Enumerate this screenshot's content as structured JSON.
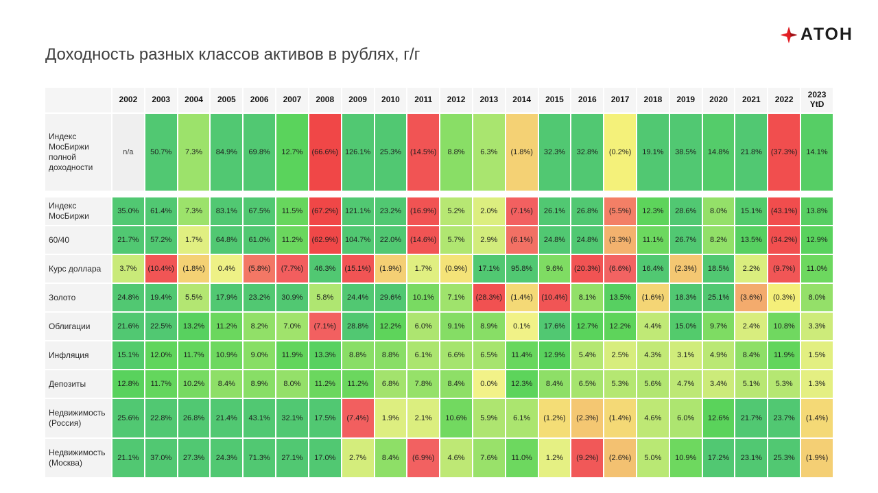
{
  "header": {
    "title": "Доходность разных классов активов в рублях, г/г",
    "brand": "АТОН",
    "brand_color": "#e31e24"
  },
  "chart_data": {
    "type": "heatmap",
    "title": "Доходность разных классов активов в рублях, г/г",
    "value_format": "percent, negative values shown in parentheses, 'n/a' = no data",
    "color_scale": {
      "strong_positive": "#4cb96e",
      "near_zero": "#f7e987",
      "strong_negative": "#ef5b55",
      "na_cell": "#efefef"
    },
    "columns": [
      "2002",
      "2003",
      "2004",
      "2005",
      "2006",
      "2007",
      "2008",
      "2009",
      "2010",
      "2011",
      "2012",
      "2013",
      "2014",
      "2015",
      "2016",
      "2017",
      "2018",
      "2019",
      "2020",
      "2021",
      "2022",
      "2023 YtD"
    ],
    "rows": [
      {
        "label": "Индекс МосБиржи полной доходности",
        "values": [
          "n/a",
          "50.7%",
          "7.3%",
          "84.9%",
          "69.8%",
          "12.7%",
          "(66.6%)",
          "126.1%",
          "25.3%",
          "(14.5%)",
          "8.8%",
          "6.3%",
          "(1.8%)",
          "32.3%",
          "32.8%",
          "(0.2%)",
          "19.1%",
          "38.5%",
          "14.8%",
          "21.8%",
          "(37.3%)",
          "14.1%"
        ]
      },
      {
        "label": "Индекс МосБиржи",
        "values": [
          "35.0%",
          "61.4%",
          "7.3%",
          "83.1%",
          "67.5%",
          "11.5%",
          "(67.2%)",
          "121.1%",
          "23.2%",
          "(16.9%)",
          "5.2%",
          "2.0%",
          "(7.1%)",
          "26.1%",
          "26.8%",
          "(5.5%)",
          "12.3%",
          "28.6%",
          "8.0%",
          "15.1%",
          "(43.1%)",
          "13.8%"
        ]
      },
      {
        "label": "60/40",
        "values": [
          "21.7%",
          "57.2%",
          "1.7%",
          "64.8%",
          "61.0%",
          "11.2%",
          "(62.9%)",
          "104.7%",
          "22.0%",
          "(14.6%)",
          "5.7%",
          "2.9%",
          "(6.1%)",
          "24.8%",
          "24.8%",
          "(3.3%)",
          "11.1%",
          "26.7%",
          "8.2%",
          "13.5%",
          "(34.2%)",
          "12.9%"
        ]
      },
      {
        "label": "Курс доллара",
        "values": [
          "3.7%",
          "(10.4%)",
          "(1.8%)",
          "0.4%",
          "(5.8%)",
          "(7.7%)",
          "46.3%",
          "(15.1%)",
          "(1.9%)",
          "1.7%",
          "(0.9%)",
          "17.1%",
          "95.8%",
          "9.6%",
          "(20.3%)",
          "(6.6%)",
          "16.4%",
          "(2.3%)",
          "18.5%",
          "2.2%",
          "(9.7%)",
          "11.0%"
        ]
      },
      {
        "label": "Золото",
        "values": [
          "24.8%",
          "19.4%",
          "5.5%",
          "17.9%",
          "23.2%",
          "30.9%",
          "5.8%",
          "24.4%",
          "29.6%",
          "10.1%",
          "7.1%",
          "(28.3%)",
          "(1.4%)",
          "(10.4%)",
          "8.1%",
          "13.5%",
          "(1.6%)",
          "18.3%",
          "25.1%",
          "(3.6%)",
          "(0.3%)",
          "8.0%"
        ]
      },
      {
        "label": "Облигации",
        "values": [
          "21.6%",
          "22.5%",
          "13.2%",
          "11.2%",
          "8.2%",
          "7.0%",
          "(7.1%)",
          "28.8%",
          "12.2%",
          "6.0%",
          "9.1%",
          "8.9%",
          "0.1%",
          "17.6%",
          "12.7%",
          "12.2%",
          "4.4%",
          "15.0%",
          "9.7%",
          "2.4%",
          "10.8%",
          "3.3%"
        ]
      },
      {
        "label": "Инфляция",
        "values": [
          "15.1%",
          "12.0%",
          "11.7%",
          "10.9%",
          "9.0%",
          "11.9%",
          "13.3%",
          "8.8%",
          "8.8%",
          "6.1%",
          "6.6%",
          "6.5%",
          "11.4%",
          "12.9%",
          "5.4%",
          "2.5%",
          "4.3%",
          "3.1%",
          "4.9%",
          "8.4%",
          "11.9%",
          "1.5%"
        ]
      },
      {
        "label": "Депозиты",
        "values": [
          "12.8%",
          "11.7%",
          "10.2%",
          "8.4%",
          "8.9%",
          "8.0%",
          "11.2%",
          "11.2%",
          "6.8%",
          "7.8%",
          "8.4%",
          "0.0%",
          "12.3%",
          "8.4%",
          "6.5%",
          "5.3%",
          "5.6%",
          "4.7%",
          "3.4%",
          "5.1%",
          "5.3%",
          "1.3%"
        ]
      },
      {
        "label": "Недвижимость (Россия)",
        "values": [
          "25.6%",
          "22.8%",
          "26.8%",
          "21.4%",
          "43.1%",
          "32.1%",
          "17.5%",
          "(7.4%)",
          "1.9%",
          "2.1%",
          "10.6%",
          "5.9%",
          "6.1%",
          "(1.2%)",
          "(2.3%)",
          "(1.4%)",
          "4.6%",
          "6.0%",
          "12.6%",
          "21.7%",
          "23.7%",
          "(1.4%)"
        ]
      },
      {
        "label": "Недвижимость (Москва)",
        "values": [
          "21.1%",
          "37.0%",
          "27.3%",
          "24.3%",
          "71.3%",
          "27.1%",
          "17.0%",
          "2.7%",
          "8.4%",
          "(6.9%)",
          "4.6%",
          "7.6%",
          "11.0%",
          "1.2%",
          "(9.2%)",
          "(2.6%)",
          "5.0%",
          "10.9%",
          "17.2%",
          "23.1%",
          "25.3%",
          "(1.9%)"
        ]
      }
    ]
  }
}
